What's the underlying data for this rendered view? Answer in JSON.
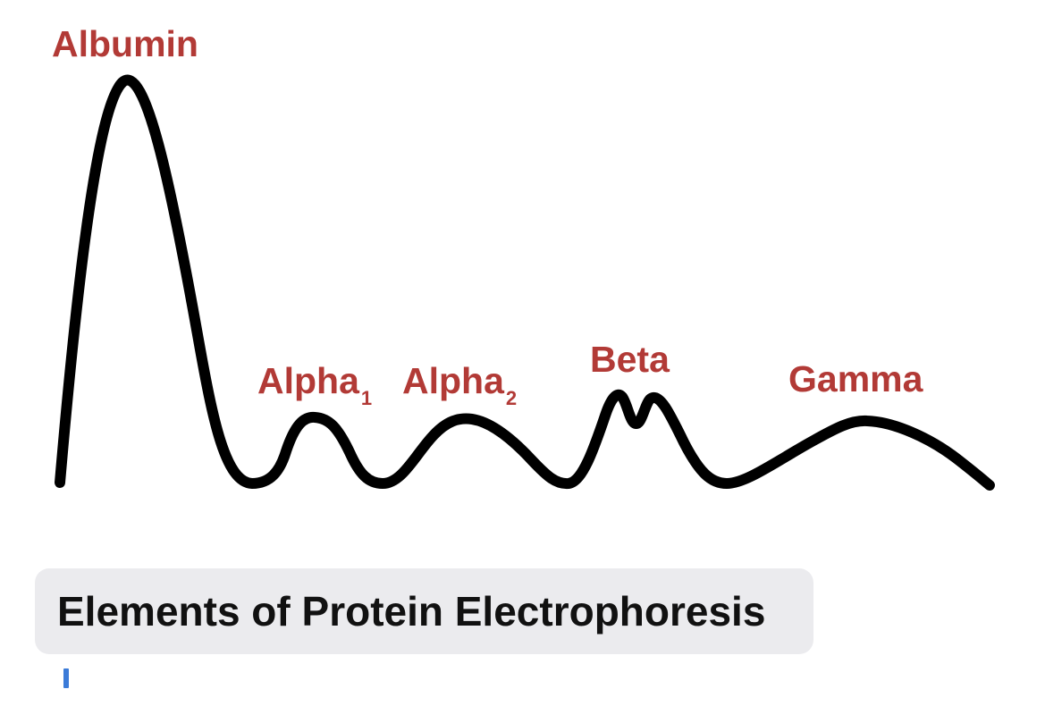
{
  "colors": {
    "label": "#b23a36",
    "curve": "#000000",
    "caption_bg": "#ebebee",
    "cursor": "#3b7bd8"
  },
  "peaks": {
    "albumin": "Albumin",
    "alpha1": {
      "label": "Alpha",
      "sub": "1"
    },
    "alpha2": {
      "label": "Alpha",
      "sub": "2"
    },
    "beta": "Beta",
    "gamma": "Gamma"
  },
  "caption": "Elements of Protein Electrophoresis"
}
